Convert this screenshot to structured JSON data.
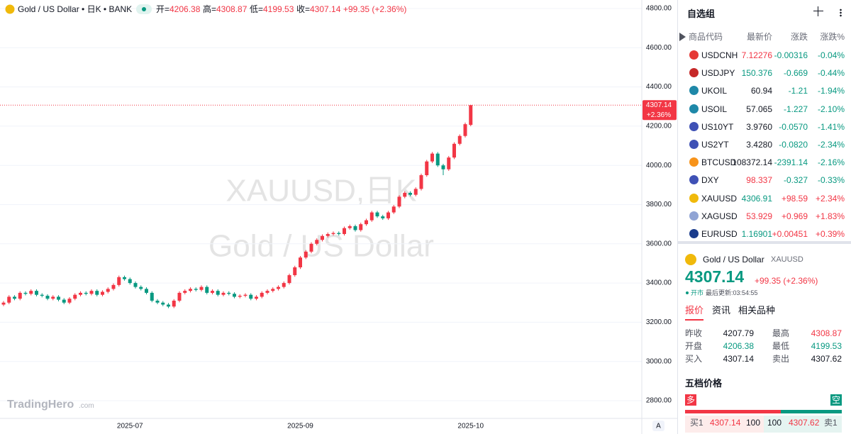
{
  "header": {
    "title": "Gold / US Dollar • 日K • BANK",
    "ohlc": [
      {
        "label": "开=",
        "value": "4206.38"
      },
      {
        "label": "高=",
        "value": "4308.87"
      },
      {
        "label": "低=",
        "value": "4199.53"
      },
      {
        "label": "收=",
        "value": "4307.14"
      }
    ],
    "change": "+99.35 (+2.36%)"
  },
  "chart_data": {
    "type": "candlestick",
    "up_color": "#f23645",
    "down_color": "#089981",
    "grid": true,
    "watermark": [
      "XAUUSD,日K",
      "Gold / US Dollar"
    ],
    "last_label": "4307.14",
    "last_change": "+2.36%",
    "ylim": [
      2800,
      4800
    ],
    "yticks": [
      {
        "value": 2800,
        "label": "2800.00"
      },
      {
        "value": 3000,
        "label": "3000.00"
      },
      {
        "value": 3200,
        "label": "3200.00"
      },
      {
        "value": 3400,
        "label": "3400.00"
      },
      {
        "value": 3600,
        "label": "3600.00"
      },
      {
        "value": 3800,
        "label": "3800.00"
      },
      {
        "value": 4000,
        "label": "4000.00"
      },
      {
        "value": 4200,
        "label": "4200.00"
      },
      {
        "value": 4400,
        "label": "4400.00"
      },
      {
        "value": 4600,
        "label": "4600.00"
      },
      {
        "value": 4800,
        "label": "4800.00"
      }
    ],
    "categories": [
      null,
      null,
      null,
      null,
      null,
      null,
      null,
      null,
      null,
      null,
      null,
      null,
      null,
      null,
      null,
      null,
      null,
      null,
      null,
      null,
      null,
      null,
      null,
      "2025-07",
      null,
      null,
      null,
      null,
      null,
      null,
      null,
      null,
      null,
      null,
      null,
      null,
      null,
      null,
      null,
      null,
      null,
      null,
      null,
      null,
      null,
      null,
      null,
      null,
      null,
      null,
      null,
      null,
      null,
      null,
      "2025-09",
      null,
      null,
      null,
      null,
      null,
      null,
      null,
      null,
      null,
      null,
      null,
      null,
      null,
      null,
      null,
      null,
      null,
      null,
      null,
      null,
      null,
      null,
      null,
      null,
      null,
      null,
      null,
      null,
      null,
      null,
      "2025-10"
    ],
    "ohlc": [
      [
        3290,
        3308,
        3282,
        3300
      ],
      [
        3300,
        3338,
        3292,
        3330
      ],
      [
        3330,
        3338,
        3312,
        3320
      ],
      [
        3320,
        3358,
        3312,
        3350
      ],
      [
        3350,
        3358,
        3337,
        3345
      ],
      [
        3345,
        3368,
        3337,
        3360
      ],
      [
        3360,
        3368,
        3332,
        3340
      ],
      [
        3340,
        3348,
        3327,
        3335
      ],
      [
        3335,
        3343,
        3312,
        3320
      ],
      [
        3320,
        3338,
        3312,
        3330
      ],
      [
        3330,
        3338,
        3307,
        3315
      ],
      [
        3315,
        3323,
        3292,
        3300
      ],
      [
        3300,
        3328,
        3292,
        3320
      ],
      [
        3320,
        3348,
        3312,
        3340
      ],
      [
        3340,
        3358,
        3332,
        3350
      ],
      [
        3350,
        3358,
        3337,
        3345
      ],
      [
        3345,
        3368,
        3337,
        3360
      ],
      [
        3360,
        3368,
        3332,
        3340
      ],
      [
        3340,
        3363,
        3332,
        3355
      ],
      [
        3355,
        3378,
        3347,
        3370
      ],
      [
        3370,
        3398,
        3362,
        3390
      ],
      [
        3390,
        3438,
        3382,
        3430
      ],
      [
        3430,
        3438,
        3412,
        3420
      ],
      [
        3420,
        3428,
        3392,
        3400
      ],
      [
        3400,
        3408,
        3372,
        3380
      ],
      [
        3380,
        3388,
        3362,
        3370
      ],
      [
        3370,
        3378,
        3342,
        3350
      ],
      [
        3350,
        3358,
        3302,
        3310
      ],
      [
        3310,
        3318,
        3292,
        3300
      ],
      [
        3300,
        3308,
        3282,
        3290
      ],
      [
        3290,
        3298,
        3272,
        3280
      ],
      [
        3280,
        3318,
        3272,
        3310
      ],
      [
        3310,
        3358,
        3302,
        3350
      ],
      [
        3350,
        3368,
        3342,
        3360
      ],
      [
        3360,
        3378,
        3352,
        3370
      ],
      [
        3370,
        3378,
        3357,
        3365
      ],
      [
        3365,
        3388,
        3357,
        3380
      ],
      [
        3380,
        3388,
        3342,
        3350
      ],
      [
        3350,
        3368,
        3342,
        3360
      ],
      [
        3360,
        3368,
        3332,
        3340
      ],
      [
        3340,
        3358,
        3332,
        3350
      ],
      [
        3350,
        3358,
        3337,
        3345
      ],
      [
        3345,
        3353,
        3322,
        3330
      ],
      [
        3330,
        3343,
        3322,
        3335
      ],
      [
        3335,
        3348,
        3327,
        3340
      ],
      [
        3340,
        3348,
        3312,
        3320
      ],
      [
        3320,
        3338,
        3312,
        3330
      ],
      [
        3330,
        3358,
        3322,
        3350
      ],
      [
        3350,
        3368,
        3342,
        3360
      ],
      [
        3360,
        3378,
        3352,
        3370
      ],
      [
        3370,
        3388,
        3362,
        3380
      ],
      [
        3380,
        3408,
        3372,
        3400
      ],
      [
        3400,
        3448,
        3392,
        3440
      ],
      [
        3440,
        3488,
        3432,
        3480
      ],
      [
        3480,
        3538,
        3472,
        3530
      ],
      [
        3530,
        3568,
        3522,
        3560
      ],
      [
        3560,
        3608,
        3552,
        3600
      ],
      [
        3600,
        3628,
        3592,
        3620
      ],
      [
        3620,
        3648,
        3612,
        3640
      ],
      [
        3640,
        3658,
        3632,
        3650
      ],
      [
        3650,
        3663,
        3642,
        3655
      ],
      [
        3655,
        3663,
        3642,
        3650
      ],
      [
        3650,
        3688,
        3642,
        3680
      ],
      [
        3680,
        3698,
        3672,
        3690
      ],
      [
        3690,
        3698,
        3662,
        3670
      ],
      [
        3670,
        3708,
        3662,
        3700
      ],
      [
        3700,
        3728,
        3692,
        3720
      ],
      [
        3720,
        3768,
        3712,
        3760
      ],
      [
        3760,
        3768,
        3732,
        3740
      ],
      [
        3740,
        3748,
        3722,
        3730
      ],
      [
        3730,
        3768,
        3722,
        3760
      ],
      [
        3760,
        3798,
        3752,
        3790
      ],
      [
        3790,
        3848,
        3782,
        3840
      ],
      [
        3840,
        3868,
        3832,
        3860
      ],
      [
        3860,
        3868,
        3842,
        3850
      ],
      [
        3850,
        3888,
        3842,
        3880
      ],
      [
        3880,
        3958,
        3872,
        3950
      ],
      [
        3950,
        4028,
        3942,
        4020
      ],
      [
        4020,
        4068,
        4012,
        4060
      ],
      [
        4060,
        4068,
        3992,
        4000
      ],
      [
        4000,
        4008,
        3950,
        3980
      ],
      [
        3980,
        4048,
        3972,
        4040
      ],
      [
        4040,
        4118,
        4032,
        4110
      ],
      [
        4110,
        4158,
        4102,
        4150
      ],
      [
        4150,
        4218,
        4142,
        4210
      ],
      [
        4206.38,
        4308.87,
        4199.53,
        4307.14
      ]
    ]
  },
  "branding": {
    "logo": "TradingHero",
    "logo_suffix": ".com",
    "auto_button": "A"
  },
  "watchlist": {
    "title": "自选组",
    "columns": [
      "商品代码",
      "最新价",
      "涨跌",
      "涨跌%"
    ],
    "rows": [
      {
        "symbol": "USDCNH",
        "price": "7.12276",
        "change": "-0.00316",
        "pct": "-0.04%",
        "price_color": "#f23645",
        "icon": "#e53935"
      },
      {
        "symbol": "USDJPY",
        "price": "150.376",
        "change": "-0.669",
        "pct": "-0.44%",
        "price_color": "#089981",
        "icon": "#c62828"
      },
      {
        "symbol": "UKOIL",
        "price": "60.94",
        "change": "-1.21",
        "pct": "-1.94%",
        "price_color": "#131722",
        "icon": "#1e88a8"
      },
      {
        "symbol": "USOIL",
        "price": "57.065",
        "change": "-1.227",
        "pct": "-2.10%",
        "price_color": "#131722",
        "icon": "#1e88a8"
      },
      {
        "symbol": "US10YT",
        "price": "3.9760",
        "change": "-0.0570",
        "pct": "-1.41%",
        "price_color": "#131722",
        "icon": "#3f51b5"
      },
      {
        "symbol": "US2YT",
        "price": "3.4280",
        "change": "-0.0820",
        "pct": "-2.34%",
        "price_color": "#131722",
        "icon": "#3f51b5"
      },
      {
        "symbol": "BTCUSD",
        "price": "108372.14",
        "change": "-2391.14",
        "pct": "-2.16%",
        "price_color": "#131722",
        "icon": "#f7931a"
      },
      {
        "symbol": "DXY",
        "price": "98.337",
        "change": "-0.327",
        "pct": "-0.33%",
        "price_color": "#f23645",
        "icon": "#3f51b5"
      },
      {
        "symbol": "XAUUSD",
        "price": "4306.91",
        "change": "+98.59",
        "pct": "+2.34%",
        "price_color": "#089981",
        "icon": "#f0b90b"
      },
      {
        "symbol": "XAGUSD",
        "price": "53.929",
        "change": "+0.969",
        "pct": "+1.83%",
        "price_color": "#f23645",
        "icon": "#90a4d4"
      },
      {
        "symbol": "EURUSD",
        "price": "1.16901",
        "change": "+0.00451",
        "pct": "+0.39%",
        "price_color": "#089981",
        "icon": "#1a3c8c"
      }
    ]
  },
  "quote": {
    "name": "Gold / US Dollar",
    "code": "XAUUSD",
    "price": "4307.14",
    "change": "+99.35 (+2.36%)",
    "status": "开市",
    "updated": "最后更新:03:54:55",
    "tabs": [
      "报价",
      "资讯",
      "相关品种"
    ],
    "stats": [
      [
        {
          "label": "昨收",
          "value": "4207.79",
          "color": "#131722"
        },
        {
          "label": "最高",
          "value": "4308.87",
          "color": "#f23645"
        }
      ],
      [
        {
          "label": "开盘",
          "value": "4206.38",
          "color": "#089981"
        },
        {
          "label": "最低",
          "value": "4199.53",
          "color": "#089981"
        }
      ],
      [
        {
          "label": "买入",
          "value": "4307.14",
          "color": "#131722"
        },
        {
          "label": "卖出",
          "value": "4307.62",
          "color": "#131722"
        }
      ]
    ],
    "depth_title": "五档价格",
    "long": "多",
    "short": "空",
    "bid": {
      "label": "买1",
      "price": "4307.14",
      "size": "100"
    },
    "ask": {
      "label": "卖1",
      "price": "4307.62",
      "size": "100"
    }
  }
}
